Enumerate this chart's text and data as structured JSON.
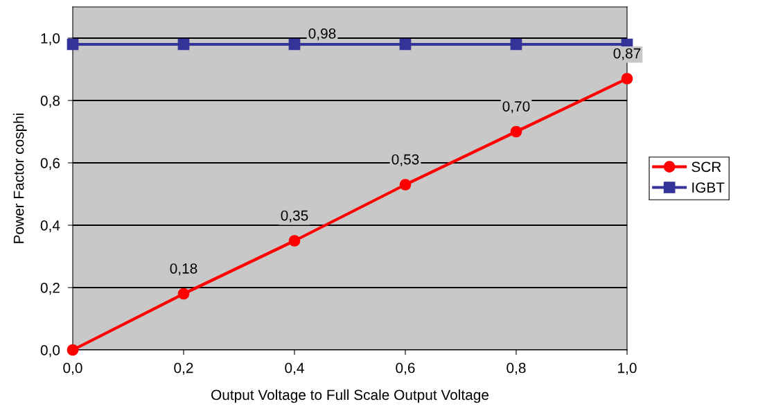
{
  "chart_data": {
    "type": "line",
    "xlabel": "Output Voltage to Full Scale Output Voltage",
    "ylabel": "Power Factor cosphi",
    "x": [
      0,
      0.2,
      0.4,
      0.6,
      0.8,
      1.0
    ],
    "series": [
      {
        "name": "SCR",
        "color": "#ff0000",
        "marker": "circle",
        "values": [
          0,
          0.18,
          0.35,
          0.53,
          0.7,
          0.87
        ],
        "value_labels": [
          null,
          "0,18",
          "0,35",
          "0,53",
          "0,70",
          "0,87"
        ]
      },
      {
        "name": "IGBT",
        "color": "#333399",
        "marker": "square",
        "values": [
          0.98,
          0.98,
          0.98,
          0.98,
          0.98,
          0.98
        ]
      }
    ],
    "annotations": [
      {
        "text": "0,98",
        "x": 0.45,
        "y": 0.98
      }
    ],
    "xlim": [
      0,
      1
    ],
    "ylim": [
      0,
      1.1
    ],
    "xticks": [
      {
        "value": 0,
        "label": "0,0"
      },
      {
        "value": 0.2,
        "label": "0,2"
      },
      {
        "value": 0.4,
        "label": "0,4"
      },
      {
        "value": 0.6,
        "label": "0,6"
      },
      {
        "value": 0.8,
        "label": "0,8"
      },
      {
        "value": 1.0,
        "label": "1,0"
      }
    ],
    "yticks": [
      {
        "value": 0,
        "label": "0,0"
      },
      {
        "value": 0.2,
        "label": "0,2"
      },
      {
        "value": 0.4,
        "label": "0,4"
      },
      {
        "value": 0.6,
        "label": "0,6"
      },
      {
        "value": 0.8,
        "label": "0,8"
      },
      {
        "value": 1.0,
        "label": "1,0"
      }
    ],
    "grid": "y",
    "legend": "right",
    "line_style": "solid"
  }
}
